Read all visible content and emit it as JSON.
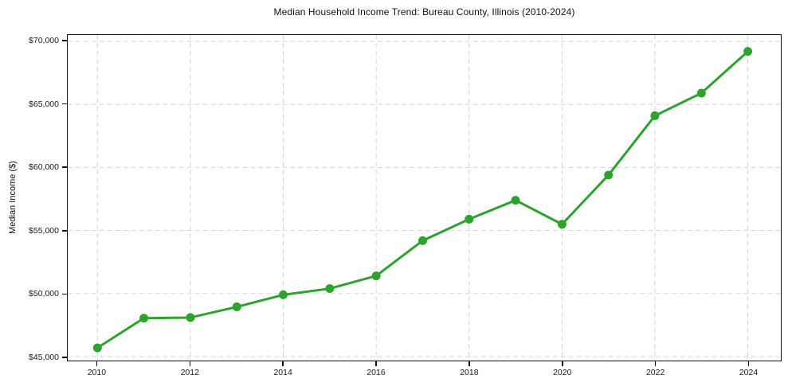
{
  "chart_data": {
    "type": "line",
    "title": "Median Household Income Trend: Bureau County, Illinois (2010-2024)",
    "xlabel": "",
    "ylabel": "Median Income ($)",
    "x": [
      2010,
      2011,
      2012,
      2013,
      2014,
      2015,
      2016,
      2017,
      2018,
      2019,
      2020,
      2021,
      2022,
      2023,
      2024
    ],
    "series": [
      {
        "values": [
          45700,
          48050,
          48100,
          48950,
          49900,
          50400,
          51400,
          54200,
          55900,
          57400,
          55500,
          59400,
          64100,
          65900,
          69200
        ]
      }
    ],
    "line_color": "#2ca32c",
    "marker": "circle",
    "marker_radius": 5.5,
    "line_width": 3,
    "xlim": [
      2009.36,
      2024.71
    ],
    "ylim": [
      44690,
      70500
    ],
    "grid": true,
    "grid_style": "dashed",
    "grid_color": "#d4d4d4",
    "legend": "none",
    "x_ticks": [
      {
        "value": 2010,
        "label": "2010"
      },
      {
        "value": 2012,
        "label": "2012"
      },
      {
        "value": 2014,
        "label": "2014"
      },
      {
        "value": 2016,
        "label": "2016"
      },
      {
        "value": 2018,
        "label": "2018"
      },
      {
        "value": 2020,
        "label": "2020"
      },
      {
        "value": 2022,
        "label": "2022"
      },
      {
        "value": 2024,
        "label": "2024"
      }
    ],
    "y_ticks": [
      {
        "value": 45000,
        "label": "$45,000"
      },
      {
        "value": 50000,
        "label": "$50,000"
      },
      {
        "value": 55000,
        "label": "$55,000"
      },
      {
        "value": 60000,
        "label": "$60,000"
      },
      {
        "value": 65000,
        "label": "$65,000"
      },
      {
        "value": 70000,
        "label": "$70,000"
      }
    ]
  }
}
